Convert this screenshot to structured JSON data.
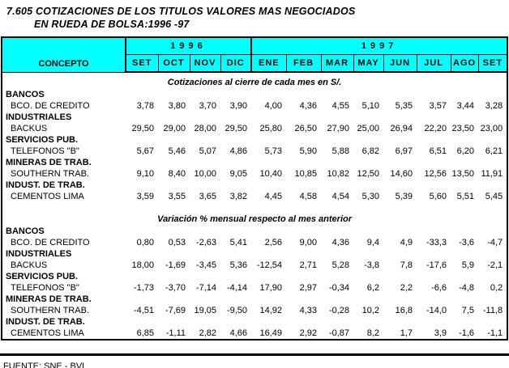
{
  "title": {
    "line1": "7.605 COTIZACIONES DE LOS TITULOS VALORES MAS NEGOCIADOS",
    "line2": "EN RUEDA DE BOLSA:1996 -97"
  },
  "table": {
    "concept_header": "CONCEPTO",
    "header_bg": "#00ffff",
    "year_groups": [
      {
        "label": "1996"
      },
      {
        "label": "1997"
      }
    ],
    "months": [
      "SET",
      "OCT",
      "NOV",
      "DIC",
      "ENE",
      "FEB",
      "MAR",
      "MAY",
      "JUN",
      "JUL",
      "AGO",
      "SET"
    ],
    "sections": [
      {
        "heading": "Cotizaciones al cierre de cada mes en S/.",
        "groups": [
          {
            "category": "BANCOS",
            "company": "BCO. DE CREDITO",
            "values": [
              "3,78",
              "3,80",
              "3,70",
              "3,90",
              "4,00",
              "4,36",
              "4,55",
              "5,10",
              "5,35",
              "3,57",
              "3,44",
              "3,28"
            ]
          },
          {
            "category": "INDUSTRIALES",
            "company": "BACKUS",
            "values": [
              "29,50",
              "29,00",
              "28,00",
              "29,50",
              "25,80",
              "26,50",
              "27,90",
              "25,00",
              "26,94",
              "22,20",
              "23,50",
              "23,00"
            ]
          },
          {
            "category": "SERVICIOS PUB.",
            "company": "TELEFONOS \"B\"",
            "values": [
              "5,67",
              "5,46",
              "5,07",
              "4,86",
              "5,73",
              "5,90",
              "5,88",
              "6,82",
              "6,97",
              "6,51",
              "6,20",
              "6,21"
            ]
          },
          {
            "category": "MINERAS DE TRAB.",
            "company": "SOUTHERN TRAB.",
            "values": [
              "9,10",
              "8,40",
              "10,00",
              "9,05",
              "10,40",
              "10,85",
              "10,82",
              "12,50",
              "14,60",
              "12,56",
              "13,50",
              "11,91"
            ]
          },
          {
            "category": "INDUST. DE TRAB.",
            "company": "CEMENTOS LIMA",
            "values": [
              "3,59",
              "3,55",
              "3,65",
              "3,82",
              "4,45",
              "4,58",
              "4,54",
              "5,30",
              "5,39",
              "5,60",
              "5,51",
              "5,45"
            ]
          }
        ]
      },
      {
        "heading": "Variación % mensual respecto al mes anterior",
        "groups": [
          {
            "category": "BANCOS",
            "company": "BCO. DE CREDITO",
            "values": [
              "0,80",
              "0,53",
              "-2,63",
              "5,41",
              "2,56",
              "9,00",
              "4,36",
              "9,4",
              "4,9",
              "-33,3",
              "-3,6",
              "-4,7"
            ]
          },
          {
            "category": "INDUSTRIALES",
            "company": "BACKUS",
            "values": [
              "18,00",
              "-1,69",
              "-3,45",
              "5,36",
              "-12,54",
              "2,71",
              "5,28",
              "-3,8",
              "7,8",
              "-17,6",
              "5,9",
              "-2,1"
            ]
          },
          {
            "category": "SERVICIOS PUB.",
            "company": "TELEFONOS \"B\"",
            "values": [
              "-1,73",
              "-3,70",
              "-7,14",
              "-4,14",
              "17,90",
              "2,97",
              "-0,34",
              "6,2",
              "2,2",
              "-6,6",
              "-4,8",
              "0,2"
            ]
          },
          {
            "category": "MINERAS DE TRAB.",
            "company": "SOUTHERN TRAB.",
            "values": [
              "-4,51",
              "-7,69",
              "19,05",
              "-9,50",
              "14,92",
              "4,33",
              "-0,28",
              "10,2",
              "16,8",
              "-14,0",
              "7,5",
              "-11,8"
            ]
          },
          {
            "category": "INDUST. DE TRAB.",
            "company": "CEMENTOS LIMA",
            "values": [
              "6,85",
              "-1,11",
              "2,82",
              "4,66",
              "16,49",
              "2,92",
              "-0,87",
              "8,2",
              "1,7",
              "3,9",
              "-1,6",
              "-1,1"
            ]
          }
        ]
      }
    ]
  },
  "footer": {
    "source": "FUENTE: SNE - BVL"
  }
}
